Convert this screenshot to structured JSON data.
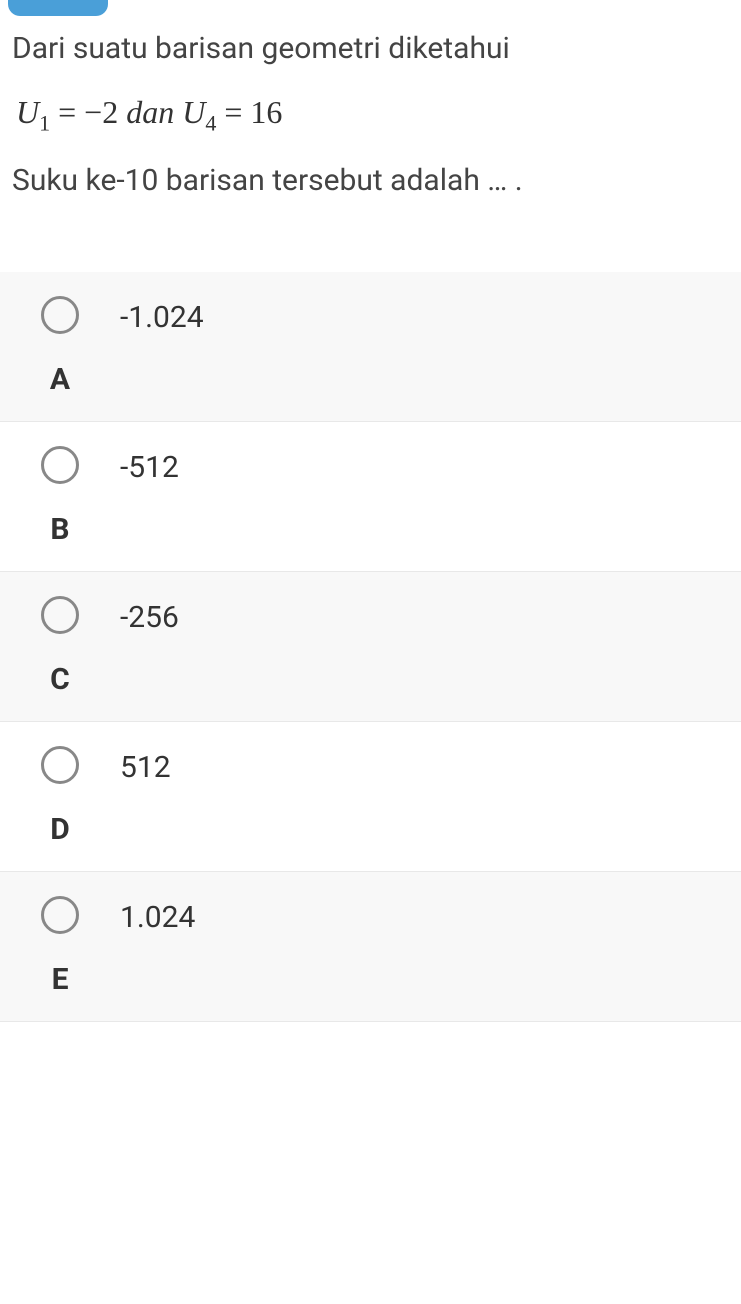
{
  "colors": {
    "badge": "#4a9fd8",
    "text": "#333333",
    "option_bg_odd": "#f8f8f8",
    "option_bg_even": "#ffffff",
    "radio_border": "#888888",
    "divider": "#e8e8e8"
  },
  "question": {
    "line1": "Dari suatu barisan geometri diketahui",
    "equation_u1_var": "U",
    "equation_u1_sub": "1",
    "equation_eq1": " = −2 ",
    "equation_dan": "dan",
    "equation_u4_var": " U",
    "equation_u4_sub": "4",
    "equation_eq2": " = 16",
    "line2": "Suku ke-10 barisan tersebut adalah … ."
  },
  "options": [
    {
      "letter": "A",
      "text": "-1.024"
    },
    {
      "letter": "B",
      "text": "-512"
    },
    {
      "letter": "C",
      "text": "-256"
    },
    {
      "letter": "D",
      "text": "512"
    },
    {
      "letter": "E",
      "text": "1.024"
    }
  ]
}
